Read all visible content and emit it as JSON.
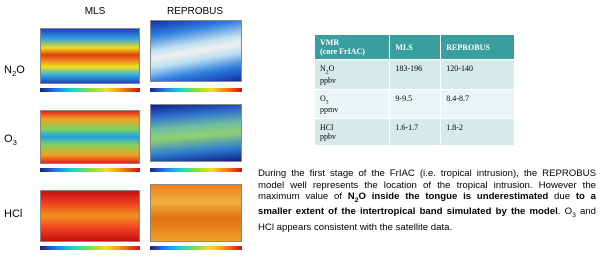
{
  "figure": {
    "columns": [
      "MLS",
      "REPROBUS"
    ],
    "rows": [
      [
        "N",
        "2",
        "O"
      ],
      [
        "O",
        "3"
      ],
      [
        "HCl"
      ]
    ]
  },
  "table": {
    "header": [
      [
        "VMR",
        "(core FrIAC)"
      ],
      "MLS",
      "REPROBUS"
    ],
    "rows": [
      {
        "species": [
          "N",
          "2",
          "O"
        ],
        "unit": "ppbv",
        "cells": [
          "183-196",
          "120-140"
        ]
      },
      {
        "species": [
          "O",
          "3"
        ],
        "unit": "ppmv",
        "cells": [
          "9-9.5",
          "8.4-8.7"
        ]
      },
      {
        "species": [
          "HCl"
        ],
        "unit": "ppbv",
        "cells": [
          "1.6-1.7",
          "1.8-2"
        ]
      }
    ]
  },
  "paragraph": {
    "segments": [
      {
        "text": "During the first stage of the FrIAC (i.e. tropical intrusion), the REPROBUS model well represents the location of the tropical intrusion. However the maximum value of "
      },
      {
        "text": "N",
        "bold": true
      },
      {
        "text": "2",
        "bold": true,
        "sub": true
      },
      {
        "text": "O inside the tongue is underestimated",
        "bold": true
      },
      {
        "text": " due "
      },
      {
        "text": "to a smaller extent of the intertropical band simulated by the model",
        "bold": true
      },
      {
        "text": ". O"
      },
      {
        "text": "3",
        "sub": true
      },
      {
        "text": " and HCl appears consistent with the satellite data."
      }
    ]
  }
}
